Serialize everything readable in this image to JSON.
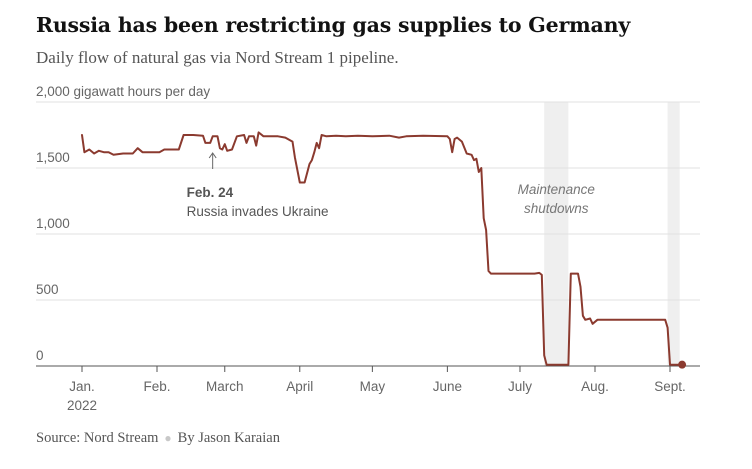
{
  "header": {
    "title": "Russia has been restricting gas supplies to Germany",
    "subtitle": "Daily flow of natural gas via Nord Stream 1 pipeline."
  },
  "footer": {
    "source": "Source: Nord Stream",
    "byline": "By Jason Karaian"
  },
  "colors": {
    "line": "#8b3a2f",
    "grid": "#e2e2e2",
    "shade": "#efefef",
    "text": "#121212",
    "muted": "#666666"
  },
  "chart_data": {
    "type": "line",
    "ylabel": "gigawatt hours per day",
    "ylim": [
      0,
      2000
    ],
    "yticks": [
      0,
      500,
      1000,
      1500,
      2000
    ],
    "ytick_labels": [
      "0",
      "500",
      "1,000",
      "1,500",
      "2,000 gigawatt hours per day"
    ],
    "xlim": [
      "2022-01-01",
      "2022-09-08"
    ],
    "xticks": [
      {
        "date": "2022-01-01",
        "label": "Jan.",
        "sublabel": "2022"
      },
      {
        "date": "2022-02-01",
        "label": "Feb."
      },
      {
        "date": "2022-03-01",
        "label": "March"
      },
      {
        "date": "2022-04-01",
        "label": "April"
      },
      {
        "date": "2022-05-01",
        "label": "May"
      },
      {
        "date": "2022-06-01",
        "label": "June"
      },
      {
        "date": "2022-07-01",
        "label": "July"
      },
      {
        "date": "2022-08-01",
        "label": "Aug."
      },
      {
        "date": "2022-09-01",
        "label": "Sept."
      }
    ],
    "shaded_periods": [
      {
        "start": "2022-07-11",
        "end": "2022-07-21"
      },
      {
        "start": "2022-08-31",
        "end": "2022-09-05"
      }
    ],
    "annotations": [
      {
        "date": "2022-02-24",
        "value": 1660,
        "label_bold": "Feb. 24",
        "label": "Russia invades Ukraine"
      },
      {
        "date": "2022-07-16",
        "value": 1290,
        "label": "Maintenance",
        "label2": "shutdowns"
      }
    ],
    "series": [
      {
        "color": "#8b3a2f",
        "points": [
          [
            "2022-01-01",
            1750
          ],
          [
            "2022-01-02",
            1620
          ],
          [
            "2022-01-04",
            1640
          ],
          [
            "2022-01-06",
            1610
          ],
          [
            "2022-01-08",
            1630
          ],
          [
            "2022-01-10",
            1620
          ],
          [
            "2022-01-12",
            1620
          ],
          [
            "2022-01-14",
            1600
          ],
          [
            "2022-01-18",
            1610
          ],
          [
            "2022-01-22",
            1610
          ],
          [
            "2022-01-24",
            1650
          ],
          [
            "2022-01-26",
            1620
          ],
          [
            "2022-01-28",
            1620
          ],
          [
            "2022-01-31",
            1620
          ],
          [
            "2022-02-02",
            1620
          ],
          [
            "2022-02-04",
            1640
          ],
          [
            "2022-02-08",
            1640
          ],
          [
            "2022-02-10",
            1640
          ],
          [
            "2022-02-12",
            1750
          ],
          [
            "2022-02-16",
            1750
          ],
          [
            "2022-02-20",
            1745
          ],
          [
            "2022-02-21",
            1690
          ],
          [
            "2022-02-23",
            1690
          ],
          [
            "2022-02-24",
            1740
          ],
          [
            "2022-02-26",
            1740
          ],
          [
            "2022-02-27",
            1650
          ],
          [
            "2022-02-28",
            1640
          ],
          [
            "2022-03-01",
            1680
          ],
          [
            "2022-03-02",
            1630
          ],
          [
            "2022-03-04",
            1640
          ],
          [
            "2022-03-06",
            1740
          ],
          [
            "2022-03-09",
            1750
          ],
          [
            "2022-03-10",
            1690
          ],
          [
            "2022-03-11",
            1740
          ],
          [
            "2022-03-13",
            1740
          ],
          [
            "2022-03-14",
            1670
          ],
          [
            "2022-03-15",
            1770
          ],
          [
            "2022-03-17",
            1740
          ],
          [
            "2022-03-20",
            1740
          ],
          [
            "2022-03-23",
            1740
          ],
          [
            "2022-03-26",
            1730
          ],
          [
            "2022-03-29",
            1700
          ],
          [
            "2022-03-30",
            1580
          ],
          [
            "2022-04-01",
            1390
          ],
          [
            "2022-04-03",
            1390
          ],
          [
            "2022-04-05",
            1530
          ],
          [
            "2022-04-06",
            1560
          ],
          [
            "2022-04-07",
            1620
          ],
          [
            "2022-04-08",
            1690
          ],
          [
            "2022-04-09",
            1650
          ],
          [
            "2022-04-10",
            1750
          ],
          [
            "2022-04-12",
            1740
          ],
          [
            "2022-04-16",
            1745
          ],
          [
            "2022-04-20",
            1740
          ],
          [
            "2022-04-25",
            1745
          ],
          [
            "2022-05-01",
            1740
          ],
          [
            "2022-05-08",
            1745
          ],
          [
            "2022-05-12",
            1730
          ],
          [
            "2022-05-15",
            1740
          ],
          [
            "2022-05-22",
            1745
          ],
          [
            "2022-06-01",
            1740
          ],
          [
            "2022-06-02",
            1720
          ],
          [
            "2022-06-03",
            1620
          ],
          [
            "2022-06-04",
            1720
          ],
          [
            "2022-06-05",
            1730
          ],
          [
            "2022-06-07",
            1700
          ],
          [
            "2022-06-09",
            1610
          ],
          [
            "2022-06-11",
            1600
          ],
          [
            "2022-06-12",
            1560
          ],
          [
            "2022-06-13",
            1570
          ],
          [
            "2022-06-14",
            1470
          ],
          [
            "2022-06-15",
            1500
          ],
          [
            "2022-06-16",
            1120
          ],
          [
            "2022-06-17",
            1030
          ],
          [
            "2022-06-18",
            720
          ],
          [
            "2022-06-19",
            700
          ],
          [
            "2022-06-22",
            700
          ],
          [
            "2022-06-30",
            700
          ],
          [
            "2022-07-07",
            700
          ],
          [
            "2022-07-09",
            705
          ],
          [
            "2022-07-10",
            690
          ],
          [
            "2022-07-11",
            80
          ],
          [
            "2022-07-12",
            10
          ],
          [
            "2022-07-21",
            10
          ],
          [
            "2022-07-22",
            700
          ],
          [
            "2022-07-25",
            700
          ],
          [
            "2022-07-26",
            600
          ],
          [
            "2022-07-27",
            380
          ],
          [
            "2022-07-28",
            350
          ],
          [
            "2022-07-30",
            360
          ],
          [
            "2022-07-31",
            320
          ],
          [
            "2022-08-02",
            350
          ],
          [
            "2022-08-05",
            350
          ],
          [
            "2022-08-15",
            350
          ],
          [
            "2022-08-25",
            350
          ],
          [
            "2022-08-30",
            350
          ],
          [
            "2022-08-31",
            290
          ],
          [
            "2022-09-01",
            10
          ],
          [
            "2022-09-06",
            10
          ]
        ],
        "end_marker": [
          "2022-09-06",
          10
        ]
      }
    ]
  }
}
